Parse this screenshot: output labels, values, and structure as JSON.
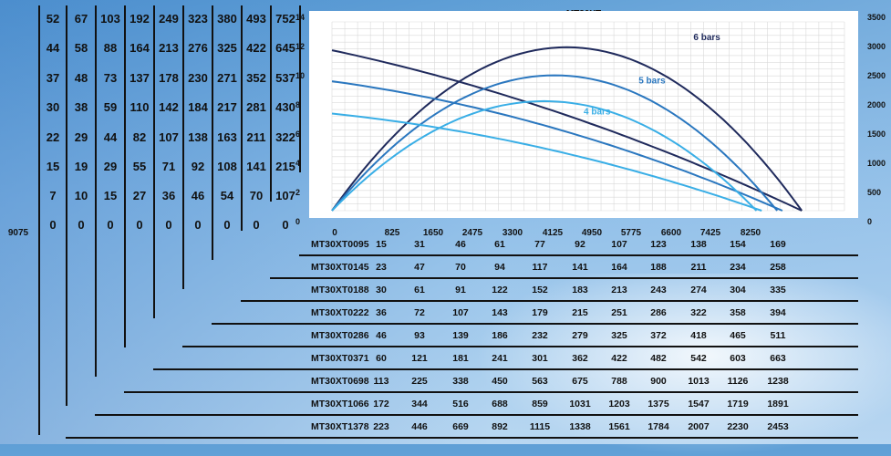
{
  "chart_data": {
    "type": "line",
    "title": "MT30XT",
    "x": [
      0,
      825,
      1650,
      2475,
      3300,
      4125,
      4950,
      5775,
      6600,
      7425,
      8250,
      9075
    ],
    "left_axis_ticks": [
      "14",
      "12",
      "10",
      "8",
      "6",
      "4",
      "2",
      "0"
    ],
    "right_axis_ticks": [
      "3500",
      "3000",
      "2500",
      "2000",
      "1500",
      "1000",
      "500",
      "0"
    ],
    "ylim": [
      0,
      14
    ],
    "y2lim": [
      0,
      3500
    ],
    "grid": true,
    "series": [
      {
        "name": "6 bars",
        "color": "#1f2a5c",
        "pressure_line": [
          [
            0,
            11.9
          ],
          [
            4125,
            7.6
          ],
          [
            9075,
            0
          ]
        ],
        "flow_curve": [
          [
            0,
            0
          ],
          [
            4500,
            3030
          ],
          [
            9075,
            0
          ]
        ]
      },
      {
        "name": "5 bars",
        "color": "#2a77bf",
        "pressure_line": [
          [
            0,
            9.6
          ],
          [
            4125,
            6.3
          ],
          [
            8700,
            0
          ]
        ],
        "flow_curve": [
          [
            0,
            0
          ],
          [
            4300,
            2510
          ],
          [
            8600,
            0
          ]
        ]
      },
      {
        "name": "4 bars",
        "color": "#39aee6",
        "pressure_line": [
          [
            0,
            7.2
          ],
          [
            4125,
            4.6
          ],
          [
            8300,
            0
          ]
        ],
        "flow_curve": [
          [
            0,
            0
          ],
          [
            4100,
            2030
          ],
          [
            8200,
            0
          ]
        ]
      }
    ],
    "label_positions_words": "6 bars top-right, 5 bars center-right, 4 bars center"
  },
  "left_table": {
    "columns": [
      [
        "52",
        "44",
        "37",
        "30",
        "22",
        "15",
        "7",
        "0"
      ],
      [
        "67",
        "58",
        "48",
        "38",
        "29",
        "19",
        "10",
        "0"
      ],
      [
        "103",
        "88",
        "73",
        "59",
        "44",
        "29",
        "15",
        "0"
      ],
      [
        "192",
        "164",
        "137",
        "110",
        "82",
        "55",
        "27",
        "0"
      ],
      [
        "249",
        "213",
        "178",
        "142",
        "107",
        "71",
        "36",
        "0"
      ],
      [
        "323",
        "276",
        "230",
        "184",
        "138",
        "92",
        "46",
        "0"
      ],
      [
        "380",
        "325",
        "271",
        "217",
        "163",
        "108",
        "54",
        "0"
      ],
      [
        "493",
        "422",
        "352",
        "281",
        "211",
        "141",
        "70",
        "0"
      ],
      [
        "752",
        "645",
        "537",
        "430",
        "322",
        "215",
        "107",
        "0"
      ]
    ]
  },
  "bottom_rows": [
    {
      "name": "MT30XT0095",
      "values": [
        "15",
        "31",
        "46",
        "61",
        "77",
        "92",
        "107",
        "123",
        "138",
        "154",
        "169"
      ]
    },
    {
      "name": "MT30XT0145",
      "values": [
        "23",
        "47",
        "70",
        "94",
        "117",
        "141",
        "164",
        "188",
        "211",
        "234",
        "258"
      ]
    },
    {
      "name": "MT30XT0188",
      "values": [
        "30",
        "61",
        "91",
        "122",
        "152",
        "183",
        "213",
        "243",
        "274",
        "304",
        "335"
      ]
    },
    {
      "name": "MT30XT0222",
      "values": [
        "36",
        "72",
        "107",
        "143",
        "179",
        "215",
        "251",
        "286",
        "322",
        "358",
        "394"
      ]
    },
    {
      "name": "MT30XT0286",
      "values": [
        "46",
        "93",
        "139",
        "186",
        "232",
        "279",
        "325",
        "372",
        "418",
        "465",
        "511"
      ]
    },
    {
      "name": "MT30XT0371",
      "values": [
        "60",
        "121",
        "181",
        "241",
        "301",
        "362",
        "422",
        "482",
        "542",
        "603",
        "663"
      ]
    },
    {
      "name": "MT30XT0698",
      "values": [
        "113",
        "225",
        "338",
        "450",
        "563",
        "675",
        "788",
        "900",
        "1013",
        "1126",
        "1238"
      ]
    },
    {
      "name": "MT30XT1066",
      "values": [
        "172",
        "344",
        "516",
        "688",
        "859",
        "1031",
        "1203",
        "1375",
        "1547",
        "1719",
        "1891"
      ]
    },
    {
      "name": "MT30XT1378",
      "values": [
        "223",
        "446",
        "669",
        "892",
        "1115",
        "1338",
        "1561",
        "1784",
        "2007",
        "2230",
        "2453"
      ]
    }
  ]
}
